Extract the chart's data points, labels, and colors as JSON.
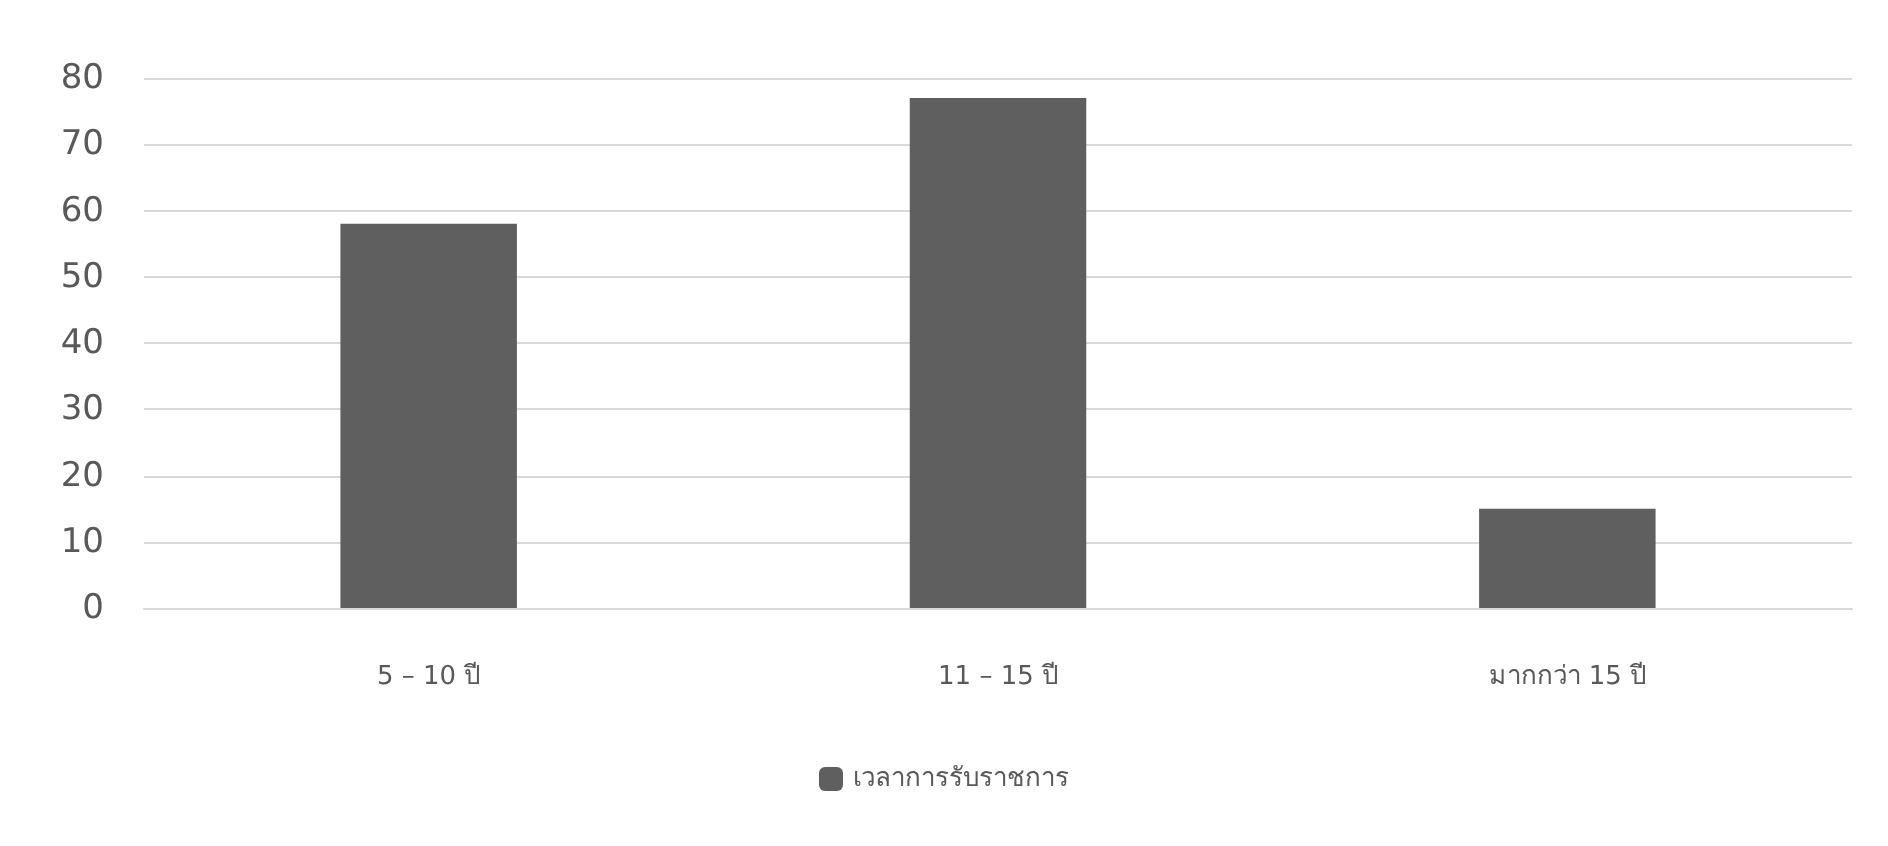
{
  "chart_data": {
    "type": "bar",
    "categories": [
      "5 – 10 ปี",
      "11 – 15 ปี",
      "มากกว่า 15 ปี"
    ],
    "series": [
      {
        "name": "เวลาการรับราชการ",
        "color": "#5f5f5f",
        "values": [
          58,
          77,
          15
        ]
      }
    ],
    "ylim": [
      0,
      80
    ],
    "yticks": [
      0,
      10,
      20,
      30,
      40,
      50,
      60,
      70,
      80
    ],
    "grid": "y",
    "legend": "bottom"
  }
}
